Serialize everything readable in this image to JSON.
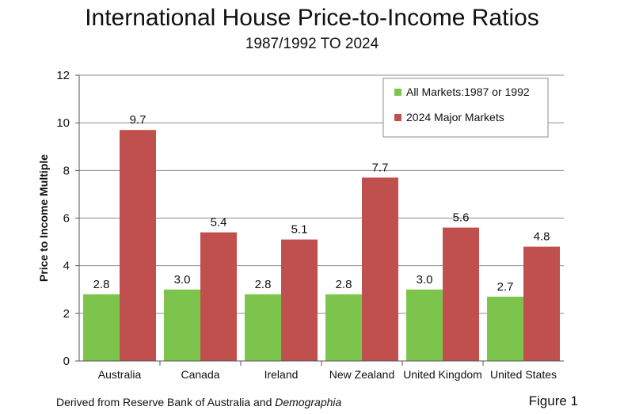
{
  "chart_data": {
    "type": "bar",
    "title": "International House Price-to-Income Ratios",
    "subtitle": "1987/1992 TO 2024",
    "ylabel": "Price to Income Multiple",
    "xlabel": "",
    "ylim": [
      0,
      12
    ],
    "yticks": [
      0,
      2,
      4,
      6,
      8,
      10,
      12
    ],
    "grid": true,
    "legend_position": "top-right",
    "categories": [
      "Australia",
      "Canada",
      "Ireland",
      "New Zealand",
      "United Kingdom",
      "United States"
    ],
    "series": [
      {
        "name": "All Markets:1987 or 1992",
        "color": "#7dc44d",
        "values": [
          2.8,
          3.0,
          2.8,
          2.8,
          3.0,
          2.7
        ],
        "labels": [
          "2.8",
          "3.0",
          "2.8",
          "2.8",
          "3.0",
          "2.7"
        ]
      },
      {
        "name": "2024 Major Markets",
        "color": "#c0504d",
        "values": [
          9.7,
          5.4,
          5.1,
          7.7,
          5.6,
          4.8
        ],
        "labels": [
          "9.7",
          "5.4",
          "5.1",
          "7.7",
          "5.6",
          "4.8"
        ]
      }
    ]
  },
  "footer": {
    "source_prefix": "Derived from Reserve Bank of Australia and ",
    "source_italic": "Demographia",
    "figure_label": "Figure 1"
  }
}
